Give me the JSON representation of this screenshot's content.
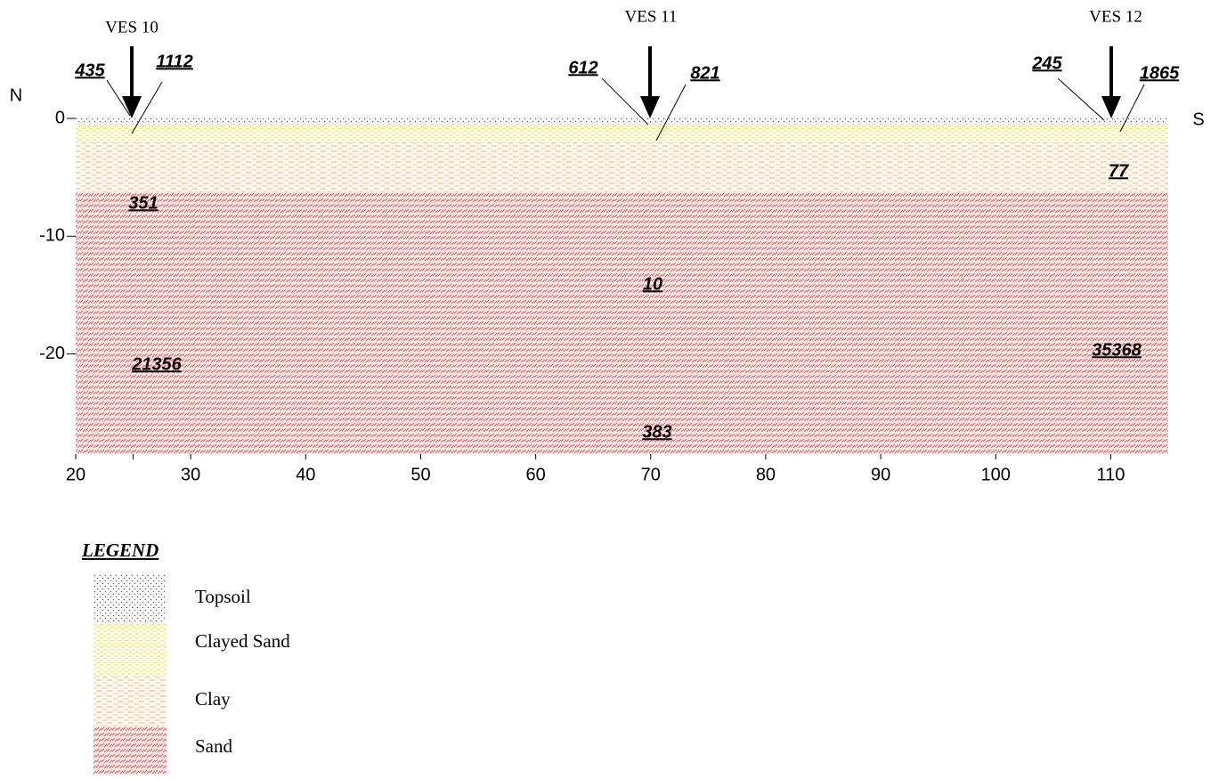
{
  "directions": {
    "left": "N",
    "right": "S"
  },
  "x_axis": {
    "xlim": [
      20,
      115
    ],
    "ticks": [
      20,
      30,
      40,
      50,
      60,
      70,
      80,
      90,
      100,
      110
    ],
    "minor_ticks": [
      25
    ]
  },
  "y_axis": {
    "ylim": [
      -28.5,
      0
    ],
    "ticks": [
      0,
      -10,
      -20
    ]
  },
  "soundings": [
    {
      "label": "VES 10",
      "left": "435",
      "right": "1112"
    },
    {
      "label": "VES 11",
      "left": "612",
      "right": "821"
    },
    {
      "label": "VES 12",
      "left": "245",
      "right": "1865"
    }
  ],
  "resistivities": [
    "351",
    "21356",
    "10",
    "383",
    "77",
    "35368"
  ],
  "legend": {
    "title": "LEGEND",
    "items": [
      "Topsoil",
      "Clayed Sand",
      "Clay",
      "Sand"
    ]
  }
}
